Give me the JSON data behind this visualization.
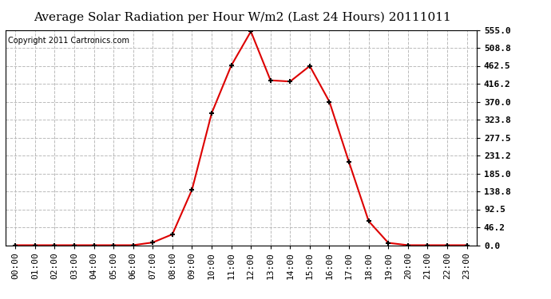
{
  "title": "Average Solar Radiation per Hour W/m2 (Last 24 Hours) 20111011",
  "copyright": "Copyright 2011 Cartronics.com",
  "hours": [
    "00:00",
    "01:00",
    "02:00",
    "03:00",
    "04:00",
    "05:00",
    "06:00",
    "07:00",
    "08:00",
    "09:00",
    "10:00",
    "11:00",
    "12:00",
    "13:00",
    "14:00",
    "15:00",
    "16:00",
    "17:00",
    "18:00",
    "19:00",
    "20:00",
    "21:00",
    "22:00",
    "23:00"
  ],
  "values": [
    0,
    0,
    0,
    0,
    0,
    0,
    0,
    7,
    28,
    143,
    340,
    463,
    551,
    425,
    422,
    462,
    370,
    214,
    62,
    6,
    0,
    0,
    0,
    0
  ],
  "line_color": "#dd0000",
  "marker": "+",
  "marker_color": "#000000",
  "marker_size": 5,
  "marker_linewidth": 1.5,
  "line_width": 1.5,
  "background_color": "#ffffff",
  "grid_color": "#bbbbbb",
  "grid_linestyle": "--",
  "yticks": [
    0.0,
    46.2,
    92.5,
    138.8,
    185.0,
    231.2,
    277.5,
    323.8,
    370.0,
    416.2,
    462.5,
    508.8,
    555.0
  ],
  "ylim": [
    0,
    555.0
  ],
  "title_fontsize": 11,
  "copyright_fontsize": 7,
  "tick_fontsize": 8,
  "ytick_fontsize": 8
}
